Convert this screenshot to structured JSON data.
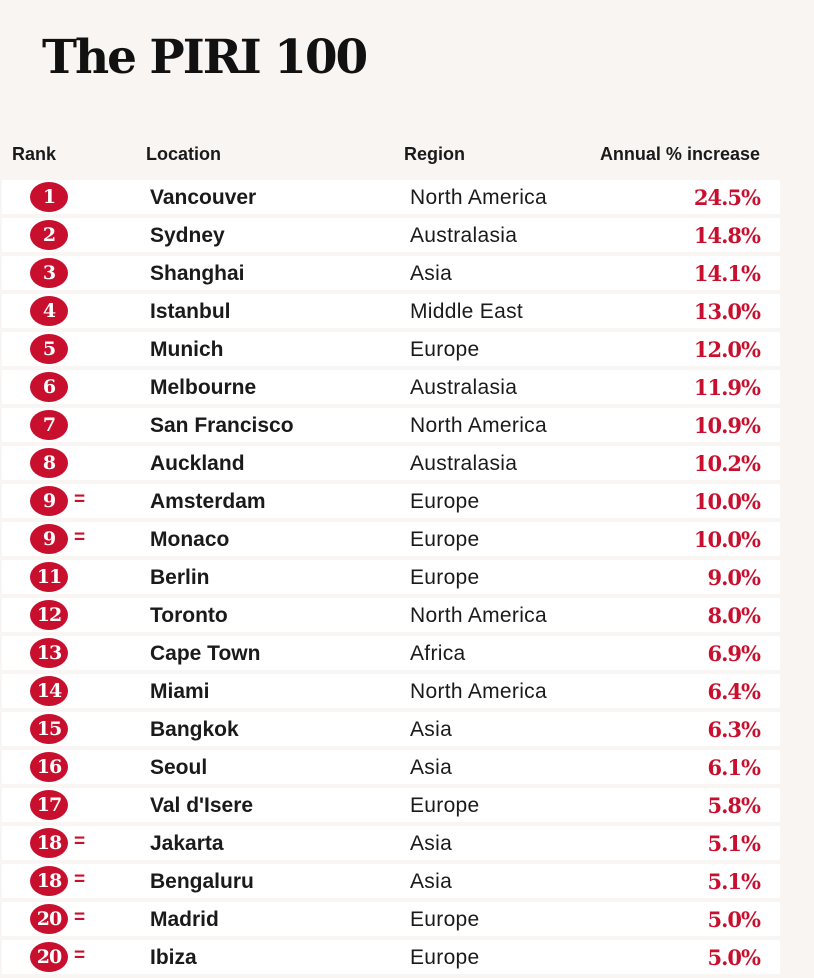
{
  "title": "The PIRI 100",
  "columns": {
    "rank": "Rank",
    "location": "Location",
    "region": "Region",
    "increase": "Annual % increase"
  },
  "colors": {
    "accent": "#c8102e",
    "background": "#f8f5f3",
    "row": "#ffffff"
  },
  "chart_data": {
    "type": "table",
    "title": "The PIRI 100",
    "columns": [
      "Rank",
      "Location",
      "Region",
      "Annual % increase"
    ],
    "rows": [
      {
        "rank": "1",
        "tie": "",
        "location": "Vancouver",
        "region": "North America",
        "increase": "24.5%"
      },
      {
        "rank": "2",
        "tie": "",
        "location": "Sydney",
        "region": "Australasia",
        "increase": "14.8%"
      },
      {
        "rank": "3",
        "tie": "",
        "location": "Shanghai",
        "region": "Asia",
        "increase": "14.1%"
      },
      {
        "rank": "4",
        "tie": "",
        "location": "Istanbul",
        "region": "Middle East",
        "increase": "13.0%"
      },
      {
        "rank": "5",
        "tie": "",
        "location": "Munich",
        "region": "Europe",
        "increase": "12.0%"
      },
      {
        "rank": "6",
        "tie": "",
        "location": "Melbourne",
        "region": "Australasia",
        "increase": "11.9%"
      },
      {
        "rank": "7",
        "tie": "",
        "location": "San Francisco",
        "region": "North America",
        "increase": "10.9%"
      },
      {
        "rank": "8",
        "tie": "",
        "location": "Auckland",
        "region": "Australasia",
        "increase": "10.2%"
      },
      {
        "rank": "9",
        "tie": "=",
        "location": "Amsterdam",
        "region": "Europe",
        "increase": "10.0%"
      },
      {
        "rank": "9",
        "tie": "=",
        "location": "Monaco",
        "region": "Europe",
        "increase": "10.0%"
      },
      {
        "rank": "11",
        "tie": "",
        "location": "Berlin",
        "region": "Europe",
        "increase": "9.0%"
      },
      {
        "rank": "12",
        "tie": "",
        "location": "Toronto",
        "region": "North America",
        "increase": "8.0%"
      },
      {
        "rank": "13",
        "tie": "",
        "location": "Cape Town",
        "region": "Africa",
        "increase": "6.9%"
      },
      {
        "rank": "14",
        "tie": "",
        "location": "Miami",
        "region": "North America",
        "increase": "6.4%"
      },
      {
        "rank": "15",
        "tie": "",
        "location": "Bangkok",
        "region": "Asia",
        "increase": "6.3%"
      },
      {
        "rank": "16",
        "tie": "",
        "location": "Seoul",
        "region": "Asia",
        "increase": "6.1%"
      },
      {
        "rank": "17",
        "tie": "",
        "location": "Val d'Isere",
        "region": "Europe",
        "increase": "5.8%"
      },
      {
        "rank": "18",
        "tie": "=",
        "location": "Jakarta",
        "region": "Asia",
        "increase": "5.1%"
      },
      {
        "rank": "18",
        "tie": "=",
        "location": "Bengaluru",
        "region": "Asia",
        "increase": "5.1%"
      },
      {
        "rank": "20",
        "tie": "=",
        "location": "Madrid",
        "region": "Europe",
        "increase": "5.0%"
      },
      {
        "rank": "20",
        "tie": "=",
        "location": "Ibiza",
        "region": "Europe",
        "increase": "5.0%"
      }
    ]
  }
}
